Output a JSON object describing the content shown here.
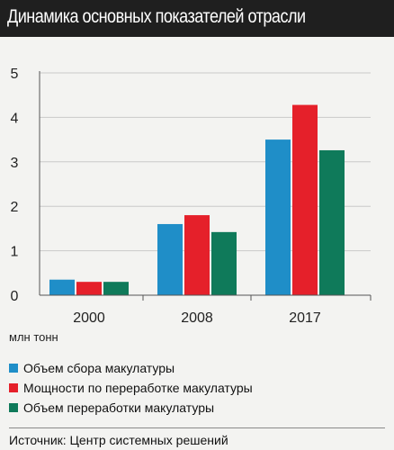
{
  "header": {
    "title": "Динамика основных показателей отрасли"
  },
  "unit_label": "млн тонн",
  "source": "Источник: Центр системных решений",
  "chart_data": {
    "type": "bar",
    "title": "Динамика основных показателей отрасли",
    "categories": [
      "2000",
      "2008",
      "2017"
    ],
    "series": [
      {
        "name": "Объем сбора макулатуры",
        "values": [
          0.35,
          1.6,
          3.5
        ],
        "color": "#1f8ec8"
      },
      {
        "name": "Мощности по переработке макулатуры",
        "values": [
          0.3,
          1.8,
          4.28
        ],
        "color": "#e5202a"
      },
      {
        "name": "Объем переработки макулатуры",
        "values": [
          0.3,
          1.42,
          3.26
        ],
        "color": "#0f7a5a"
      }
    ],
    "ylabel": "млн тонн",
    "ylim": [
      0,
      5
    ],
    "yticks": [
      0,
      1,
      2,
      3,
      4,
      5
    ],
    "grid": true,
    "legend_position": "bottom"
  }
}
